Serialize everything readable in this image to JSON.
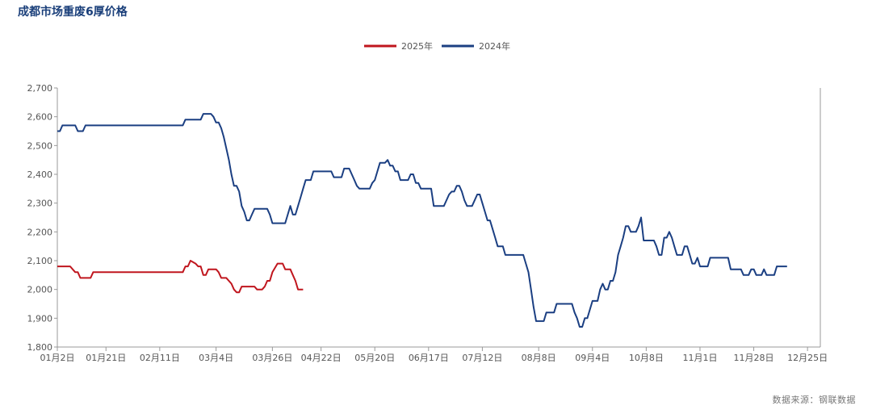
{
  "title": "成都市场重废6厚价格",
  "source": "数据来源：钢联数据",
  "colors": {
    "s2025": "#c0161e",
    "s2024": "#1b3f82",
    "axis": "#999999"
  },
  "chart_data": {
    "type": "line",
    "ylim": [
      1800,
      2700
    ],
    "yticks": [
      1800,
      1900,
      2000,
      2100,
      2200,
      2300,
      2400,
      2500,
      2600,
      2700
    ],
    "ytick_labels": [
      "1,800",
      "1,900",
      "2,000",
      "2,100",
      "2,200",
      "2,300",
      "2,400",
      "2,500",
      "2,600",
      "2,700"
    ],
    "xticks": [
      {
        "label": "01月2日",
        "day": 0
      },
      {
        "label": "01月21日",
        "day": 19
      },
      {
        "label": "02月11日",
        "day": 40
      },
      {
        "label": "03月4日",
        "day": 62
      },
      {
        "label": "03月26日",
        "day": 84
      },
      {
        "label": "04月22日",
        "day": 103
      },
      {
        "label": "05月20日",
        "day": 124
      },
      {
        "label": "06月17日",
        "day": 145
      },
      {
        "label": "07月12日",
        "day": 166
      },
      {
        "label": "08月8日",
        "day": 188
      },
      {
        "label": "09月4日",
        "day": 209
      },
      {
        "label": "10月8日",
        "day": 230
      },
      {
        "label": "11月1日",
        "day": 251
      },
      {
        "label": "11月28日",
        "day": 272
      },
      {
        "label": "12月25日",
        "day": 293
      }
    ],
    "xmax": 298,
    "legend": "top-center",
    "series": [
      {
        "name": "2025年",
        "color_key": "s2025",
        "points": [
          [
            0,
            2080
          ],
          [
            5,
            2080
          ],
          [
            7,
            2060
          ],
          [
            8,
            2060
          ],
          [
            9,
            2040
          ],
          [
            13,
            2040
          ],
          [
            14,
            2060
          ],
          [
            49,
            2060
          ],
          [
            50,
            2080
          ],
          [
            51,
            2080
          ],
          [
            52,
            2100
          ],
          [
            54,
            2090
          ],
          [
            55,
            2080
          ],
          [
            56,
            2080
          ],
          [
            57,
            2050
          ],
          [
            58,
            2050
          ],
          [
            59,
            2070
          ],
          [
            62,
            2070
          ],
          [
            63,
            2060
          ],
          [
            64,
            2040
          ],
          [
            66,
            2040
          ],
          [
            68,
            2020
          ],
          [
            69,
            2000
          ],
          [
            70,
            1990
          ],
          [
            71,
            1990
          ],
          [
            72,
            2010
          ],
          [
            77,
            2010
          ],
          [
            78,
            2000
          ],
          [
            80,
            2000
          ],
          [
            81,
            2010
          ],
          [
            82,
            2030
          ],
          [
            83,
            2030
          ],
          [
            84,
            2060
          ],
          [
            86,
            2090
          ],
          [
            88,
            2090
          ],
          [
            89,
            2070
          ],
          [
            91,
            2070
          ],
          [
            92,
            2050
          ],
          [
            93,
            2030
          ],
          [
            94,
            2000
          ],
          [
            96,
            2000
          ]
        ]
      },
      {
        "name": "2024年",
        "color_key": "s2024",
        "points": [
          [
            0,
            2550
          ],
          [
            1,
            2550
          ],
          [
            2,
            2570
          ],
          [
            7,
            2570
          ],
          [
            8,
            2550
          ],
          [
            10,
            2550
          ],
          [
            11,
            2570
          ],
          [
            49,
            2570
          ],
          [
            50,
            2590
          ],
          [
            56,
            2590
          ],
          [
            57,
            2610
          ],
          [
            60,
            2610
          ],
          [
            61,
            2600
          ],
          [
            62,
            2580
          ],
          [
            63,
            2580
          ],
          [
            64,
            2560
          ],
          [
            65,
            2530
          ],
          [
            66,
            2490
          ],
          [
            67,
            2450
          ],
          [
            68,
            2400
          ],
          [
            69,
            2360
          ],
          [
            70,
            2360
          ],
          [
            71,
            2340
          ],
          [
            72,
            2290
          ],
          [
            73,
            2270
          ],
          [
            74,
            2240
          ],
          [
            75,
            2240
          ],
          [
            76,
            2260
          ],
          [
            77,
            2280
          ],
          [
            82,
            2280
          ],
          [
            83,
            2260
          ],
          [
            84,
            2230
          ],
          [
            89,
            2230
          ],
          [
            90,
            2260
          ],
          [
            91,
            2290
          ],
          [
            92,
            2260
          ],
          [
            93,
            2260
          ],
          [
            94,
            2290
          ],
          [
            95,
            2320
          ],
          [
            96,
            2350
          ],
          [
            97,
            2380
          ],
          [
            99,
            2380
          ],
          [
            100,
            2410
          ],
          [
            107,
            2410
          ],
          [
            108,
            2390
          ],
          [
            111,
            2390
          ],
          [
            112,
            2420
          ],
          [
            114,
            2420
          ],
          [
            115,
            2400
          ],
          [
            116,
            2380
          ],
          [
            117,
            2360
          ],
          [
            118,
            2350
          ],
          [
            122,
            2350
          ],
          [
            123,
            2370
          ],
          [
            124,
            2380
          ],
          [
            125,
            2410
          ],
          [
            126,
            2440
          ],
          [
            128,
            2440
          ],
          [
            129,
            2450
          ],
          [
            130,
            2430
          ],
          [
            131,
            2430
          ],
          [
            132,
            2410
          ],
          [
            133,
            2410
          ],
          [
            134,
            2380
          ],
          [
            137,
            2380
          ],
          [
            138,
            2400
          ],
          [
            139,
            2400
          ],
          [
            140,
            2370
          ],
          [
            141,
            2370
          ],
          [
            142,
            2350
          ],
          [
            146,
            2350
          ],
          [
            147,
            2290
          ],
          [
            151,
            2290
          ],
          [
            152,
            2310
          ],
          [
            153,
            2330
          ],
          [
            154,
            2340
          ],
          [
            155,
            2340
          ],
          [
            156,
            2360
          ],
          [
            157,
            2360
          ],
          [
            158,
            2340
          ],
          [
            159,
            2310
          ],
          [
            160,
            2290
          ],
          [
            162,
            2290
          ],
          [
            163,
            2310
          ],
          [
            164,
            2330
          ],
          [
            165,
            2330
          ],
          [
            166,
            2300
          ],
          [
            167,
            2270
          ],
          [
            168,
            2240
          ],
          [
            169,
            2240
          ],
          [
            170,
            2210
          ],
          [
            171,
            2180
          ],
          [
            172,
            2150
          ],
          [
            174,
            2150
          ],
          [
            175,
            2120
          ],
          [
            182,
            2120
          ],
          [
            183,
            2090
          ],
          [
            184,
            2060
          ],
          [
            185,
            2000
          ],
          [
            186,
            1940
          ],
          [
            187,
            1890
          ],
          [
            190,
            1890
          ],
          [
            191,
            1920
          ],
          [
            194,
            1920
          ],
          [
            195,
            1950
          ],
          [
            201,
            1950
          ],
          [
            202,
            1920
          ],
          [
            203,
            1900
          ],
          [
            204,
            1870
          ],
          [
            205,
            1870
          ],
          [
            206,
            1900
          ],
          [
            207,
            1900
          ],
          [
            208,
            1930
          ],
          [
            209,
            1960
          ],
          [
            211,
            1960
          ],
          [
            212,
            2000
          ],
          [
            213,
            2020
          ],
          [
            214,
            2000
          ],
          [
            215,
            2000
          ],
          [
            216,
            2030
          ],
          [
            217,
            2030
          ],
          [
            218,
            2060
          ],
          [
            219,
            2120
          ],
          [
            220,
            2150
          ],
          [
            221,
            2180
          ],
          [
            222,
            2220
          ],
          [
            223,
            2220
          ],
          [
            224,
            2200
          ],
          [
            226,
            2200
          ],
          [
            227,
            2220
          ],
          [
            228,
            2250
          ],
          [
            229,
            2170
          ],
          [
            233,
            2170
          ],
          [
            234,
            2150
          ],
          [
            235,
            2120
          ],
          [
            236,
            2120
          ],
          [
            237,
            2180
          ],
          [
            238,
            2180
          ],
          [
            239,
            2200
          ],
          [
            240,
            2180
          ],
          [
            241,
            2150
          ],
          [
            242,
            2120
          ],
          [
            244,
            2120
          ],
          [
            245,
            2150
          ],
          [
            246,
            2150
          ],
          [
            247,
            2120
          ],
          [
            248,
            2090
          ],
          [
            249,
            2090
          ],
          [
            250,
            2110
          ],
          [
            251,
            2080
          ],
          [
            254,
            2080
          ],
          [
            255,
            2110
          ],
          [
            262,
            2110
          ],
          [
            263,
            2070
          ],
          [
            267,
            2070
          ],
          [
            268,
            2050
          ],
          [
            270,
            2050
          ],
          [
            271,
            2070
          ],
          [
            272,
            2070
          ],
          [
            273,
            2050
          ],
          [
            275,
            2050
          ],
          [
            276,
            2070
          ],
          [
            277,
            2050
          ],
          [
            280,
            2050
          ],
          [
            281,
            2080
          ],
          [
            285,
            2080
          ]
        ]
      }
    ]
  }
}
